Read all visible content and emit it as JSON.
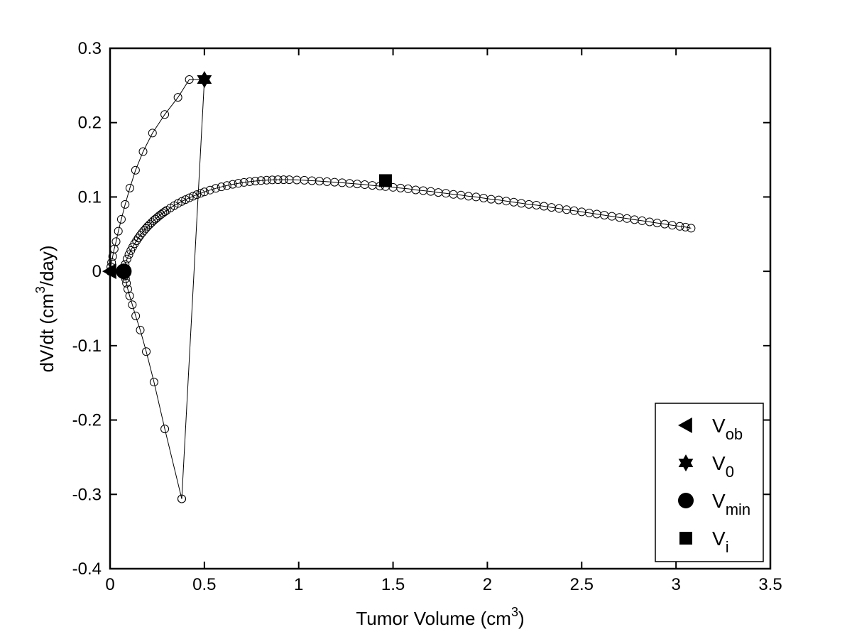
{
  "chart_data": {
    "type": "scatter",
    "title": "",
    "xlabel": "Tumor Volume (cm",
    "xlabel_sup": "3",
    "xlabel_end": ")",
    "ylabel": "dV/dt (cm",
    "ylabel_sup": "3",
    "ylabel_end": "/day)",
    "xlim": [
      0,
      3.5
    ],
    "ylim": [
      -0.4,
      0.3
    ],
    "xticks": [
      "0",
      "0.5",
      "1",
      "1.5",
      "2",
      "2.5",
      "3",
      "3.5"
    ],
    "yticks": [
      "0.3",
      "0.2",
      "0.1",
      "0",
      "-0.1",
      "-0.2",
      "-0.3",
      "-0.4"
    ],
    "grid": false,
    "legend_position": "bottom-right",
    "series": [
      {
        "x": [
          0.0,
          0.004,
          0.008,
          0.014,
          0.022,
          0.032,
          0.044,
          0.06,
          0.08,
          0.105,
          0.135,
          0.175,
          0.225,
          0.29,
          0.36,
          0.42,
          0.5
        ],
        "y": [
          0.0,
          0.006,
          0.012,
          0.02,
          0.03,
          0.04,
          0.054,
          0.07,
          0.09,
          0.112,
          0.136,
          0.161,
          0.186,
          0.211,
          0.234,
          0.258,
          0.258
        ]
      },
      {
        "x": [
          0.5,
          0.38
        ],
        "y": [
          0.258,
          -0.306
        ]
      },
      {
        "x": [
          0.38,
          0.29,
          0.233,
          0.192,
          0.16,
          0.136,
          0.118,
          0.104,
          0.094,
          0.087,
          0.082,
          0.078,
          0.075,
          0.073
        ],
        "y": [
          -0.306,
          -0.212,
          -0.149,
          -0.108,
          -0.079,
          -0.06,
          -0.045,
          -0.033,
          -0.024,
          -0.016,
          -0.01,
          -0.006,
          -0.003,
          0.0
        ]
      },
      {
        "x": [
          0.073,
          0.08,
          0.09,
          0.1,
          0.11,
          0.12,
          0.13,
          0.14,
          0.15,
          0.16,
          0.17,
          0.18,
          0.19,
          0.2,
          0.21,
          0.22,
          0.23,
          0.24,
          0.25,
          0.26,
          0.27,
          0.28,
          0.29,
          0.3,
          0.32,
          0.34,
          0.36,
          0.38,
          0.4,
          0.42,
          0.44,
          0.46,
          0.48,
          0.5,
          0.53,
          0.56,
          0.59,
          0.62,
          0.65,
          0.68,
          0.71,
          0.74,
          0.77,
          0.8,
          0.83,
          0.86,
          0.89,
          0.92,
          0.95,
          0.99,
          1.03,
          1.07,
          1.11,
          1.15,
          1.19,
          1.23,
          1.27,
          1.31,
          1.35,
          1.39,
          1.43,
          1.46,
          1.5,
          1.54,
          1.58,
          1.62,
          1.66,
          1.7,
          1.74,
          1.78,
          1.82,
          1.86,
          1.9,
          1.94,
          1.98,
          2.02,
          2.06,
          2.1,
          2.14,
          2.18,
          2.22,
          2.26,
          2.3,
          2.34,
          2.38,
          2.42,
          2.46,
          2.5,
          2.54,
          2.58,
          2.62,
          2.66,
          2.7,
          2.74,
          2.78,
          2.82,
          2.86,
          2.9,
          2.94,
          2.98,
          3.02,
          3.05,
          3.08
        ],
        "y": [
          0.0,
          0.0093,
          0.0166,
          0.0225,
          0.0279,
          0.0327,
          0.0371,
          0.0411,
          0.0449,
          0.0484,
          0.0517,
          0.0548,
          0.0577,
          0.0605,
          0.0631,
          0.0656,
          0.068,
          0.0702,
          0.0724,
          0.0745,
          0.0765,
          0.0784,
          0.0802,
          0.082,
          0.0853,
          0.0884,
          0.0913,
          0.094,
          0.0965,
          0.0988,
          0.101,
          0.1031,
          0.105,
          0.1068,
          0.1093,
          0.1116,
          0.1136,
          0.1154,
          0.117,
          0.1184,
          0.1196,
          0.1206,
          0.1214,
          0.1221,
          0.1226,
          0.123,
          0.1232,
          0.1232,
          0.1232,
          0.1229,
          0.1225,
          0.1219,
          0.1213,
          0.1206,
          0.1199,
          0.1191,
          0.1183,
          0.1175,
          0.1166,
          0.1156,
          0.1146,
          0.114,
          0.113,
          0.112,
          0.111,
          0.1095,
          0.1085,
          0.1075,
          0.106,
          0.105,
          0.1035,
          0.1025,
          0.101,
          0.1,
          0.0985,
          0.097,
          0.096,
          0.0945,
          0.093,
          0.0915,
          0.09,
          0.089,
          0.0875,
          0.086,
          0.0845,
          0.083,
          0.0815,
          0.08,
          0.0785,
          0.077,
          0.0755,
          0.074,
          0.0725,
          0.071,
          0.0695,
          0.068,
          0.0665,
          0.065,
          0.0635,
          0.062,
          0.0605,
          0.0595,
          0.058
        ]
      }
    ],
    "markers": [
      {
        "label": "V",
        "sub": "ob",
        "symbol": "triangle-left",
        "x": 0.0,
        "y": 0.0
      },
      {
        "label": "V",
        "sub": "0",
        "symbol": "star",
        "x": 0.5,
        "y": 0.258
      },
      {
        "label": "V",
        "sub": "min",
        "symbol": "circle",
        "x": 0.073,
        "y": 0.0
      },
      {
        "label": "V",
        "sub": "i",
        "symbol": "square",
        "x": 1.46,
        "y": 0.122
      }
    ]
  }
}
